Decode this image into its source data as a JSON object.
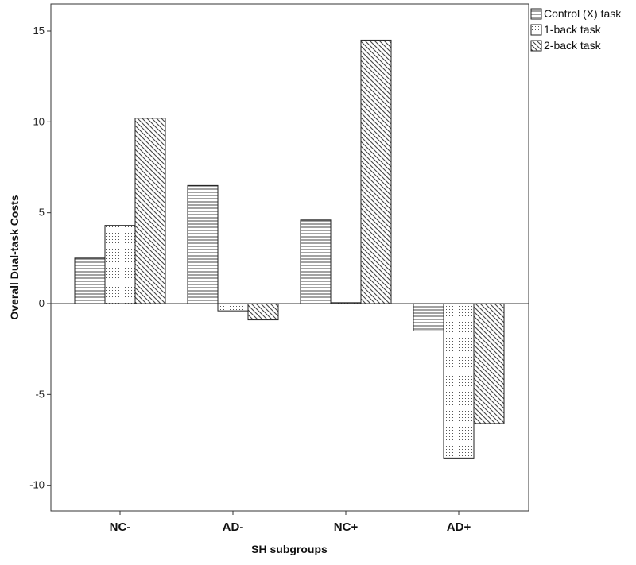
{
  "chart_data": {
    "type": "bar",
    "title": "",
    "xlabel": "SH subgroups",
    "ylabel": "Overall Dual-task Costs",
    "categories": [
      "NC-",
      "AD-",
      "NC+",
      "AD+"
    ],
    "series": [
      {
        "name": "Control (X) task",
        "pattern": "horizontal",
        "values": [
          2.5,
          6.5,
          4.6,
          -1.5
        ]
      },
      {
        "name": "1-back task",
        "pattern": "dots",
        "values": [
          4.3,
          -0.4,
          0.05,
          -8.5
        ]
      },
      {
        "name": "2-back task",
        "pattern": "diagonal",
        "values": [
          10.2,
          -0.9,
          14.5,
          -6.6
        ]
      }
    ],
    "ylim": [
      -11.5,
      16.5
    ],
    "yticks": [
      -10,
      -5,
      0,
      5,
      10,
      15
    ],
    "grid": false,
    "legend_position": "top-right",
    "colors": {
      "frame": "#333333",
      "bar_stroke": "#222222",
      "fill": "#ffffff"
    }
  }
}
